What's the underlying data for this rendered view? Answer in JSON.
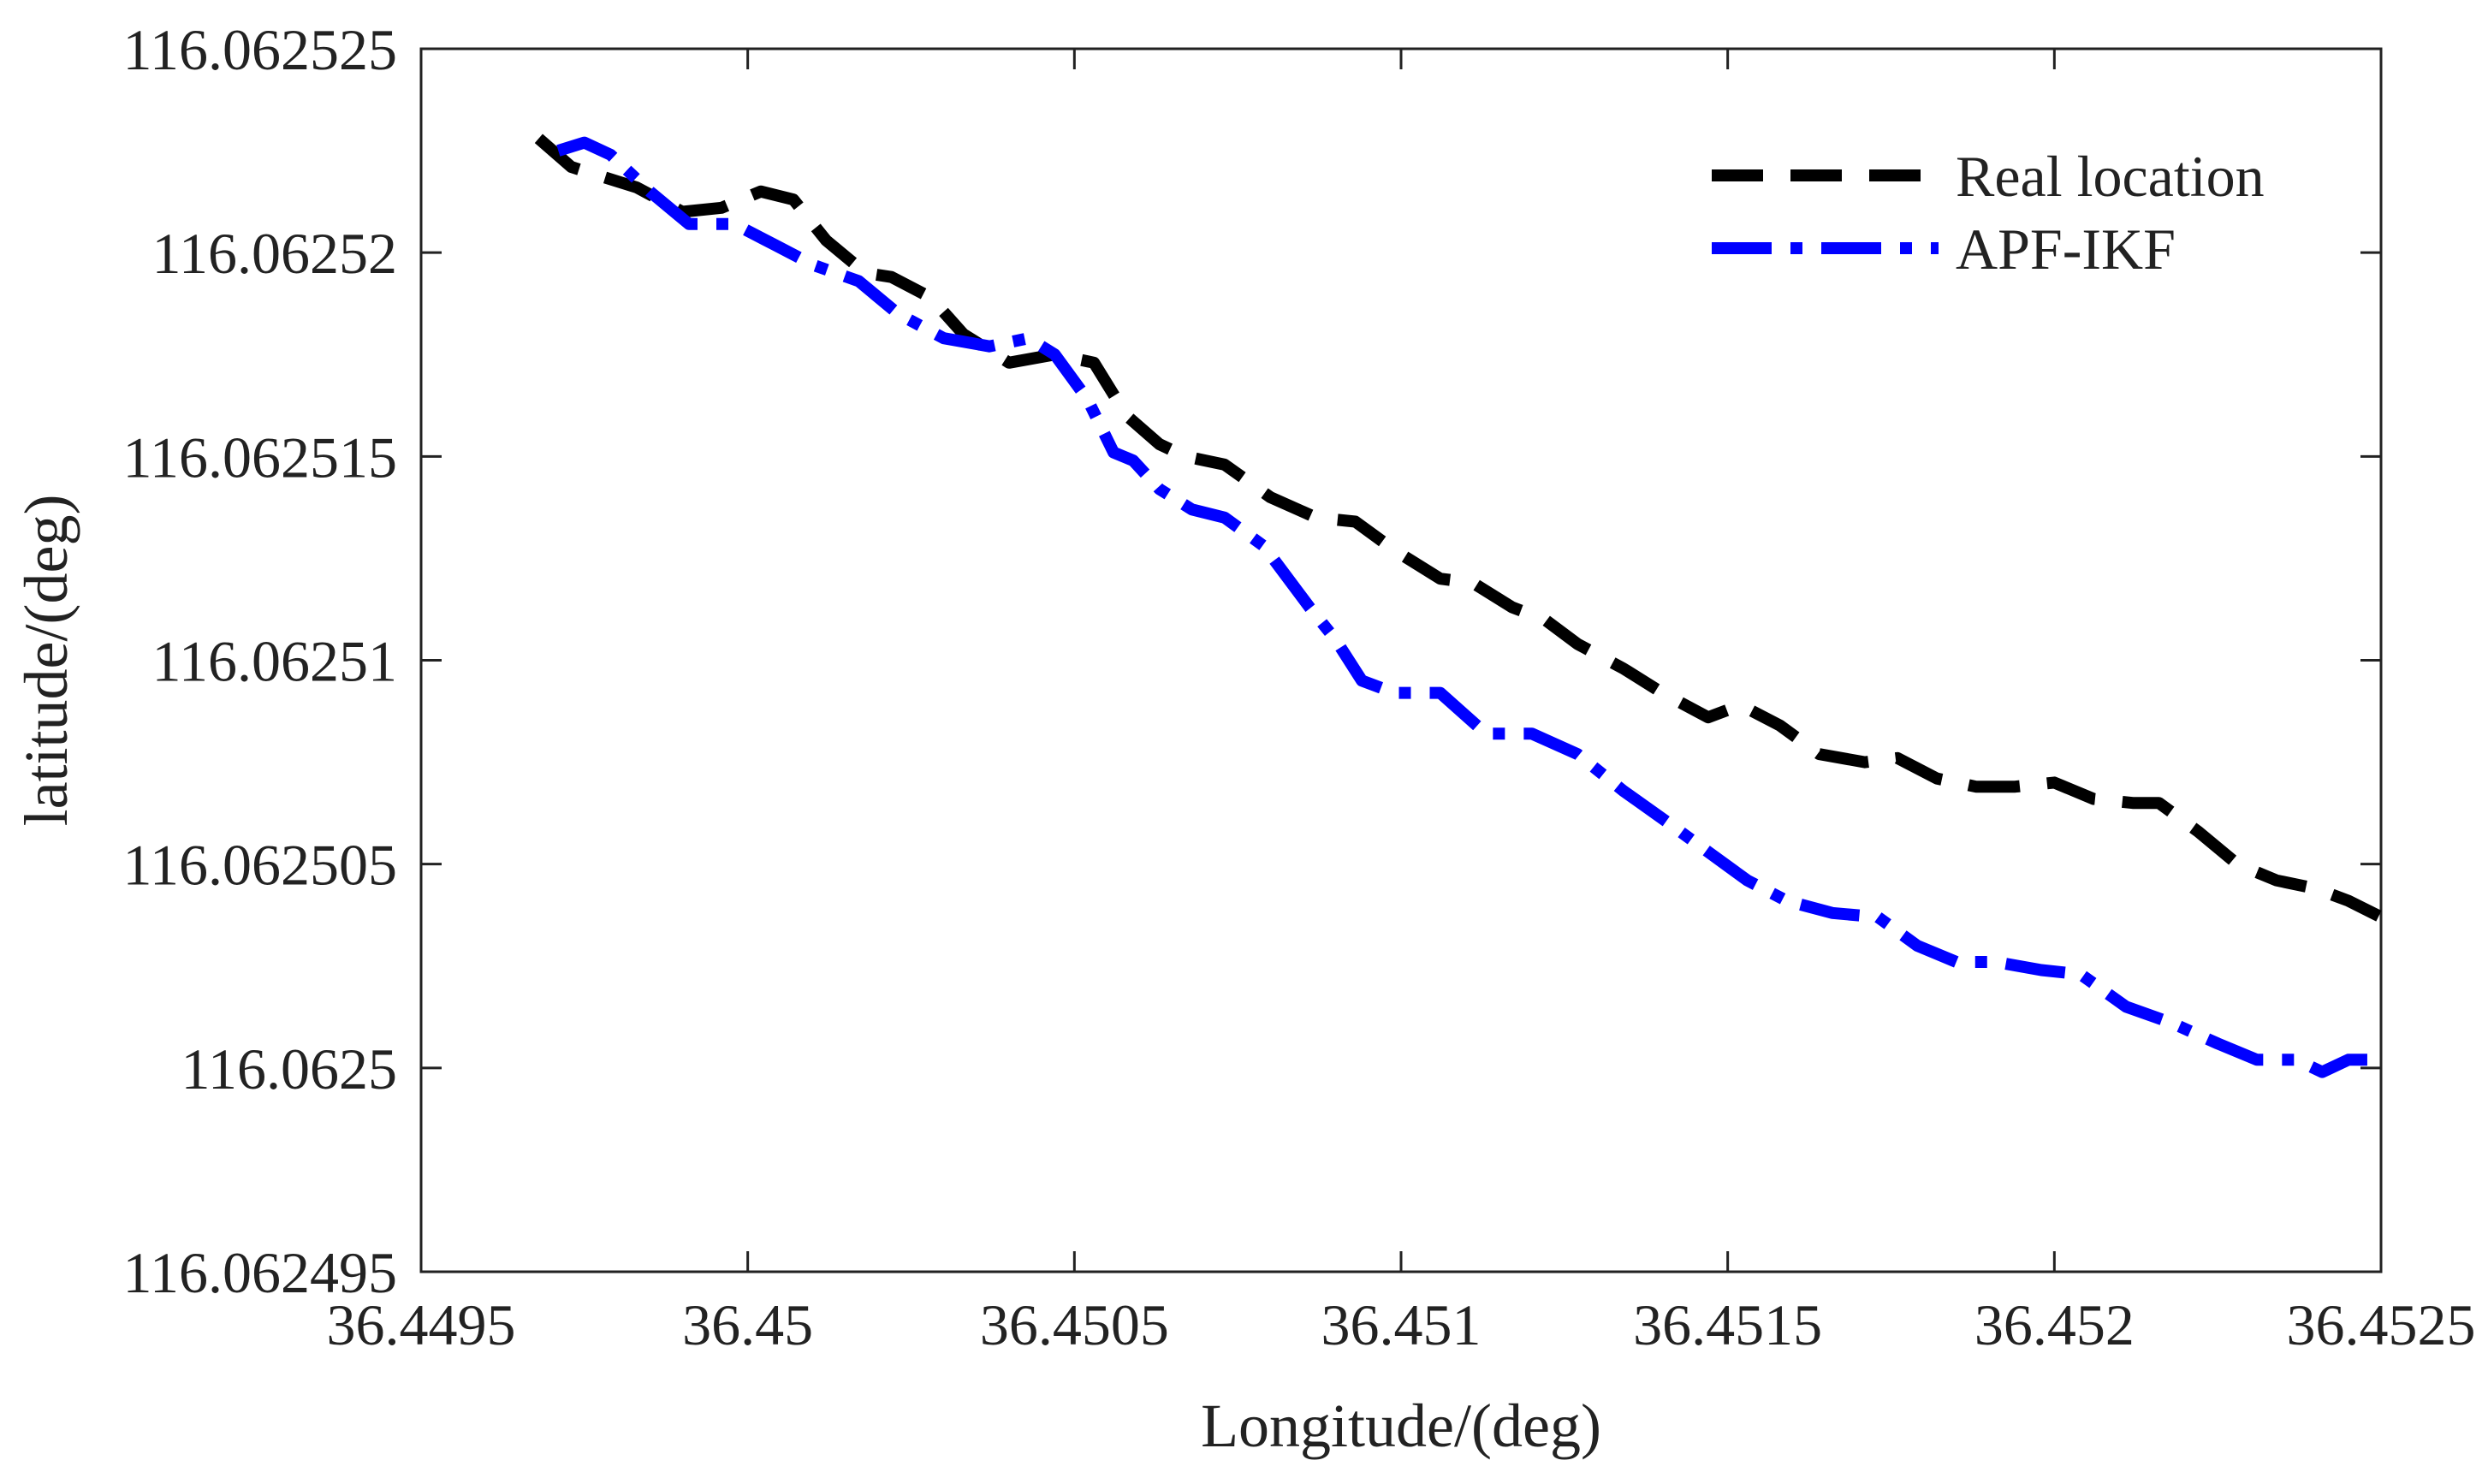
{
  "chart_data": {
    "type": "line",
    "title": "",
    "xlabel": "Longitude/(deg)",
    "ylabel": "latitude/(deg)",
    "xlim": [
      36.4495,
      36.4525
    ],
    "ylim": [
      116.062495,
      116.062525
    ],
    "x_ticks": [
      36.4495,
      36.45,
      36.4505,
      36.451,
      36.4515,
      36.452,
      36.4525
    ],
    "x_tick_labels": [
      "36.4495",
      "36.45",
      "36.4505",
      "36.451",
      "36.4515",
      "36.452",
      "36.4525"
    ],
    "y_ticks": [
      116.062495,
      116.0625,
      116.062505,
      116.06251,
      116.062515,
      116.06252,
      116.062525
    ],
    "y_tick_labels": [
      "116.062495",
      "116.0625",
      "116.062505",
      "116.06251",
      "116.062515",
      "116.06252",
      "116.062525"
    ],
    "grid": false,
    "legend_position": "top-right",
    "series": [
      {
        "name": "Real location",
        "color": "#000000",
        "style": "dashed",
        "x": [
          36.44968,
          36.44973,
          36.44983,
          36.4499,
          36.44996,
          36.45002,
          36.45007,
          36.45012,
          36.45018,
          36.45022,
          36.45028,
          36.45033,
          36.4504,
          36.45047,
          36.45053,
          36.45058,
          36.45063,
          36.45067,
          36.45073,
          36.4508,
          36.45087,
          36.45093,
          36.45099,
          36.45106,
          36.45111,
          36.45117,
          36.45122,
          36.45127,
          36.45134,
          36.4514,
          36.45147,
          36.45152,
          36.45158,
          36.45164,
          36.45171,
          36.45176,
          36.45182,
          36.45188,
          36.45194,
          36.452,
          36.45206,
          36.45212,
          36.45216,
          36.45222,
          36.45228,
          36.45234,
          36.4524,
          36.45245,
          36.4525
        ],
        "values": [
          116.0625228,
          116.0625221,
          116.0625216,
          116.062521,
          116.0625211,
          116.0625215,
          116.0625213,
          116.0625203,
          116.0625195,
          116.0625194,
          116.0625189,
          116.062518,
          116.0625173,
          116.0625175,
          116.0625173,
          116.062516,
          116.0625153,
          116.062515,
          116.0625148,
          116.062514,
          116.0625135,
          116.0625134,
          116.0625127,
          116.062512,
          116.0625119,
          116.0625113,
          116.062511,
          116.0625104,
          116.0625098,
          116.0625092,
          116.0625086,
          116.0625089,
          116.0625084,
          116.0625077,
          116.0625075,
          116.0625076,
          116.0625071,
          116.0625069,
          116.0625069,
          116.062507,
          116.0625066,
          116.0625065,
          116.0625065,
          116.0625058,
          116.062505,
          116.0625046,
          116.0625044,
          116.0625041,
          116.0625037
        ]
      },
      {
        "name": "APF-IKF",
        "color": "#0000ff",
        "style": "dash-dot",
        "x": [
          36.44971,
          36.44975,
          36.44979,
          36.44985,
          36.44991,
          36.44998,
          36.45004,
          36.4501,
          36.45017,
          36.45023,
          36.4503,
          36.45037,
          36.45043,
          36.45047,
          36.45052,
          36.45056,
          36.45059,
          36.45063,
          36.45068,
          36.45073,
          36.45079,
          36.45086,
          36.4509,
          36.45094,
          36.45099,
          36.45106,
          36.45113,
          36.4512,
          36.45127,
          36.45134,
          36.45141,
          36.45147,
          36.45153,
          36.45159,
          36.45166,
          36.45173,
          36.45179,
          36.45185,
          36.45191,
          36.45198,
          36.45204,
          36.45211,
          36.45218,
          36.45225,
          36.45231,
          36.45237,
          36.45241,
          36.45245,
          36.4525
        ],
        "values": [
          116.0625225,
          116.0625227,
          116.0625224,
          116.0625215,
          116.0625207,
          116.0625207,
          116.0625202,
          116.0625197,
          116.0625193,
          116.0625185,
          116.0625179,
          116.0625177,
          116.0625179,
          116.0625175,
          116.0625164,
          116.0625151,
          116.0625149,
          116.0625142,
          116.0625137,
          116.0625135,
          116.0625128,
          116.0625113,
          116.0625105,
          116.0625095,
          116.0625092,
          116.0625092,
          116.0625082,
          116.0625082,
          116.0625077,
          116.0625068,
          116.062506,
          116.0625053,
          116.0625046,
          116.0625041,
          116.0625038,
          116.0625037,
          116.062503,
          116.0625026,
          116.0625026,
          116.0625024,
          116.0625023,
          116.0625015,
          116.0625011,
          116.0625006,
          116.0625002,
          116.0625002,
          116.0624999,
          116.0625002,
          116.0625002
        ]
      }
    ]
  }
}
